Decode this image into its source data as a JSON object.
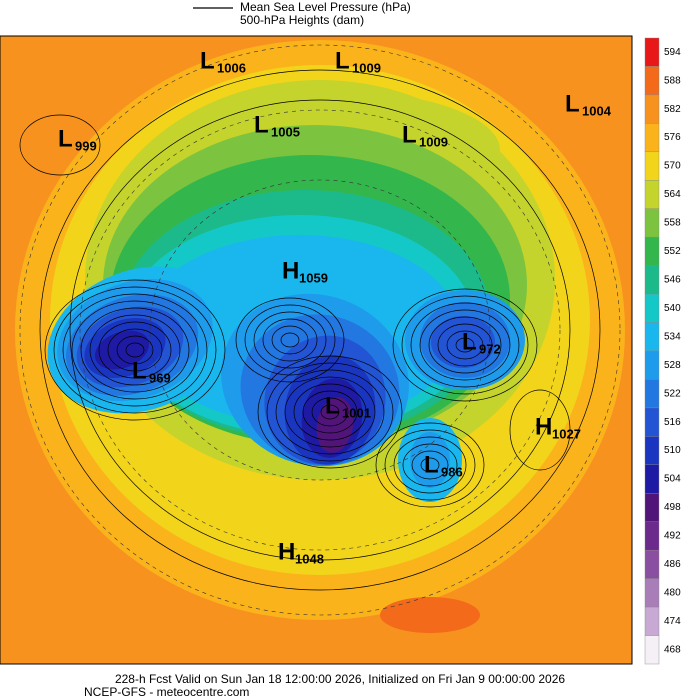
{
  "legend": [
    "Mean Sea Level Pressure (hPa)",
    "500-hPa Heights (dam)"
  ],
  "centers": [
    {
      "letter": "L",
      "value": "1006"
    },
    {
      "letter": "L",
      "value": "1009"
    },
    {
      "letter": "L",
      "value": "1004"
    },
    {
      "letter": "L",
      "value": "999"
    },
    {
      "letter": "L",
      "value": "1005"
    },
    {
      "letter": "L",
      "value": "1009"
    },
    {
      "letter": "H",
      "value": "1059"
    },
    {
      "letter": "L",
      "value": "972"
    },
    {
      "letter": "L",
      "value": "969"
    },
    {
      "letter": "L",
      "value": "1001"
    },
    {
      "letter": "H",
      "value": "1027"
    },
    {
      "letter": "L",
      "value": "986"
    },
    {
      "letter": "H",
      "value": "1048"
    }
  ],
  "colorbar": [
    {
      "label": "594",
      "color": "#e81818"
    },
    {
      "label": "588",
      "color": "#f26a1a"
    },
    {
      "label": "582",
      "color": "#f7921e"
    },
    {
      "label": "576",
      "color": "#fbb31c"
    },
    {
      "label": "570",
      "color": "#f2d41b"
    },
    {
      "label": "564",
      "color": "#c4d42c"
    },
    {
      "label": "558",
      "color": "#7cc43f"
    },
    {
      "label": "552",
      "color": "#33b74c"
    },
    {
      "label": "546",
      "color": "#1cba8b"
    },
    {
      "label": "540",
      "color": "#14c8c8"
    },
    {
      "label": "534",
      "color": "#19b7ee"
    },
    {
      "label": "528",
      "color": "#1f9bec"
    },
    {
      "label": "522",
      "color": "#2277e0"
    },
    {
      "label": "516",
      "color": "#2254d4"
    },
    {
      "label": "510",
      "color": "#1a36c1"
    },
    {
      "label": "504",
      "color": "#1e1aa3"
    },
    {
      "label": "498",
      "color": "#51157a"
    },
    {
      "label": "492",
      "color": "#6d2a8d"
    },
    {
      "label": "486",
      "color": "#8a4fa0"
    },
    {
      "label": "480",
      "color": "#a97db8"
    },
    {
      "label": "474",
      "color": "#c8a9d4"
    },
    {
      "label": "468",
      "color": "#f4f0f6"
    }
  ],
  "footer": [
    "228-h Fcst Valid on Sun Jan 18 12:00:00 2026, Initialized on Fri Jan  9 00:00:00 2026",
    "NCEP-GFS  - meteocentre.com"
  ]
}
